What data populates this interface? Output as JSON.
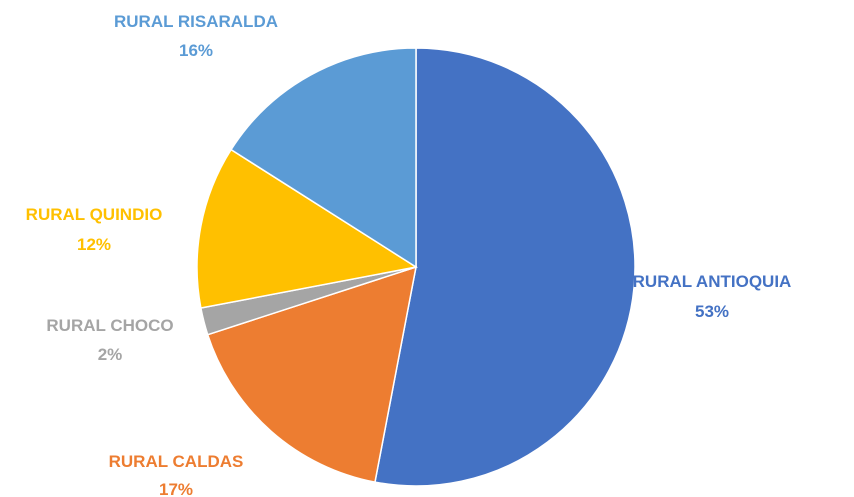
{
  "chart_data": {
    "type": "pie",
    "categories": [
      "RURAL ANTIOQUIA",
      "RURAL CALDAS",
      "RURAL CHOCO",
      "RURAL QUINDIO",
      "RURAL RISARALDA"
    ],
    "values": [
      53,
      17,
      2,
      12,
      16
    ],
    "value_labels": [
      "53%",
      "17%",
      "2%",
      "12%",
      "16%"
    ],
    "colors": [
      "#4472C4",
      "#ED7D31",
      "#A5A5A5",
      "#FFC000",
      "#5B9BD5"
    ],
    "start_angle_deg": 0,
    "direction": "clockwise",
    "legend": "none"
  }
}
